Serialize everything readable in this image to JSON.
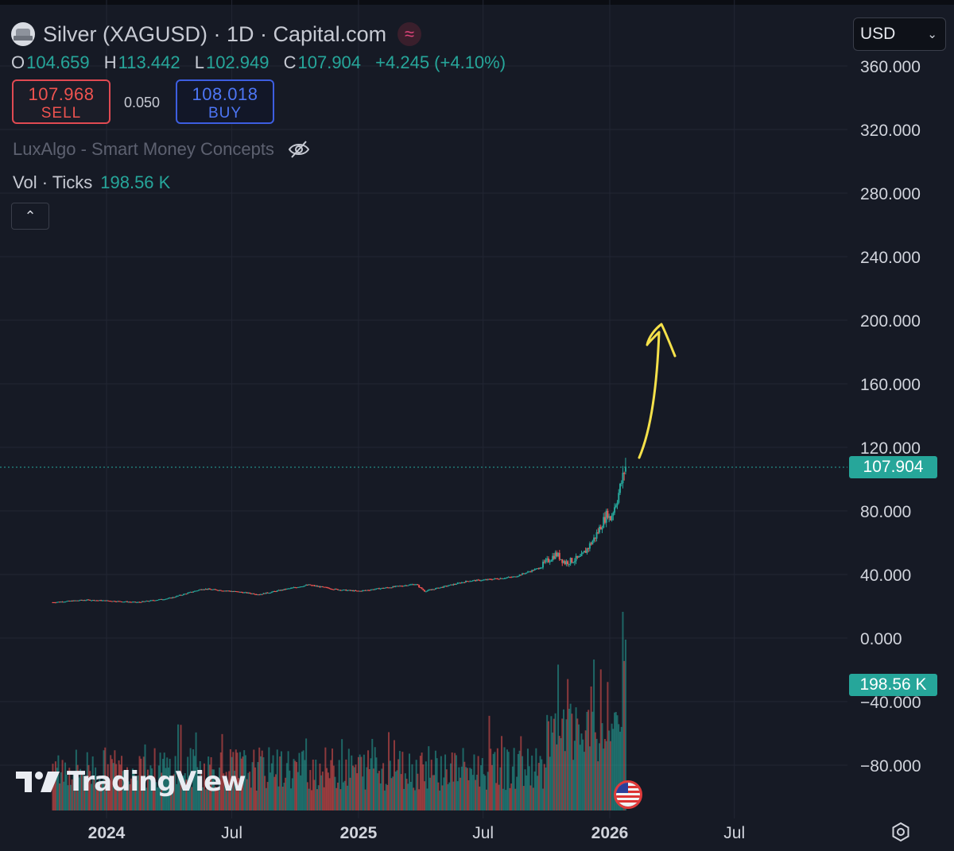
{
  "header": {
    "symbol_title": "Silver (XAGUSD) · 1D · Capital.com",
    "live_icon_glyph": "≈",
    "ohlc": {
      "open_label": "O",
      "open": "104.659",
      "high_label": "H",
      "high": "113.442",
      "low_label": "L",
      "low": "102.949",
      "close_label": "C",
      "close": "107.904",
      "change": "+4.245 (+4.10%)"
    }
  },
  "trade": {
    "sell_price": "107.968",
    "sell_label": "SELL",
    "spread": "0.050",
    "buy_price": "108.018",
    "buy_label": "BUY"
  },
  "indicator": {
    "name": "LuxAlgo - Smart Money Concepts",
    "icon": "eye-crossed-icon"
  },
  "volume_legend": {
    "label": "Vol · Ticks",
    "value": "198.56 K"
  },
  "collapse_glyph": "⌃",
  "currency": {
    "value": "USD",
    "icon": "chevron-down-icon"
  },
  "branding": {
    "name": "TradingView"
  },
  "colors": {
    "up": "#26a69a",
    "down": "#ef5350",
    "background": "#161a25",
    "annotation": "#f5e14a",
    "sell": "#ef5350",
    "buy": "#4d76f5"
  },
  "chart_data": {
    "type": "candlestick",
    "price_axis": {
      "ticks": [
        "360.000",
        "320.000",
        "280.000",
        "240.000",
        "200.000",
        "160.000",
        "120.000",
        "80.000",
        "40.000",
        "0.000",
        "−40.000",
        "−80.000"
      ],
      "range": [
        -92,
        372
      ]
    },
    "time_axis": {
      "ticks": [
        {
          "label": "2024",
          "date": "2024-01-01",
          "bold": true
        },
        {
          "label": "Jul",
          "date": "2024-07-01",
          "bold": false
        },
        {
          "label": "2025",
          "date": "2025-01-01",
          "bold": true
        },
        {
          "label": "Jul",
          "date": "2025-07-01",
          "bold": false
        },
        {
          "label": "2026",
          "date": "2026-01-01",
          "bold": true
        },
        {
          "label": "Jul",
          "date": "2026-07-01",
          "bold": false
        }
      ]
    },
    "last_price": "107.904",
    "last_volume": "198.56 K",
    "price_series": [
      {
        "date": "2023-10-15",
        "close": 22.5
      },
      {
        "date": "2023-12-01",
        "close": 24.0
      },
      {
        "date": "2024-01-01",
        "close": 23.5
      },
      {
        "date": "2024-02-15",
        "close": 22.5
      },
      {
        "date": "2024-04-01",
        "close": 25.0
      },
      {
        "date": "2024-05-20",
        "close": 31.0
      },
      {
        "date": "2024-07-01",
        "close": 29.5
      },
      {
        "date": "2024-08-10",
        "close": 27.5
      },
      {
        "date": "2024-10-20",
        "close": 33.5
      },
      {
        "date": "2024-12-01",
        "close": 30.5
      },
      {
        "date": "2025-01-01",
        "close": 29.5
      },
      {
        "date": "2025-03-25",
        "close": 34.0
      },
      {
        "date": "2025-04-07",
        "close": 29.5
      },
      {
        "date": "2025-06-10",
        "close": 36.0
      },
      {
        "date": "2025-07-01",
        "close": 36.5
      },
      {
        "date": "2025-08-15",
        "close": 38.5
      },
      {
        "date": "2025-09-20",
        "close": 44.0
      },
      {
        "date": "2025-10-15",
        "close": 53.0
      },
      {
        "date": "2025-10-28",
        "close": 47.5
      },
      {
        "date": "2025-11-20",
        "close": 50.5
      },
      {
        "date": "2025-12-10",
        "close": 63.0
      },
      {
        "date": "2025-12-29",
        "close": 79.0
      },
      {
        "date": "2026-01-01",
        "close": 74.0
      },
      {
        "date": "2026-01-12",
        "close": 88.0
      },
      {
        "date": "2026-01-24",
        "close": 107.904
      }
    ]
  }
}
